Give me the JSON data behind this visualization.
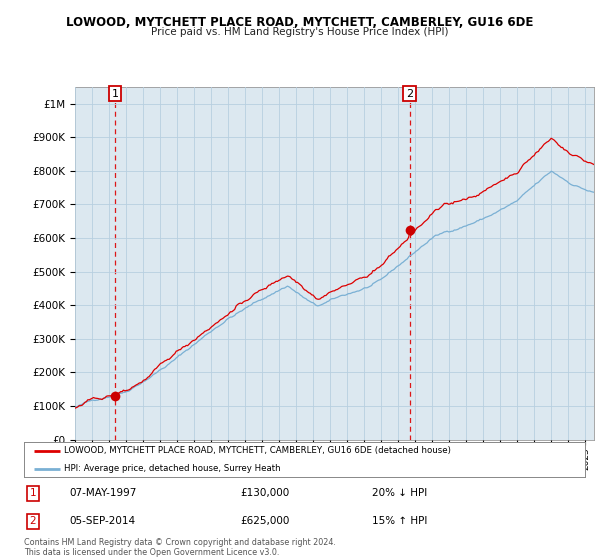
{
  "title": "LOWOOD, MYTCHETT PLACE ROAD, MYTCHETT, CAMBERLEY, GU16 6DE",
  "subtitle": "Price paid vs. HM Land Registry's House Price Index (HPI)",
  "ylabel_ticks": [
    "£0",
    "£100K",
    "£200K",
    "£300K",
    "£400K",
    "£500K",
    "£600K",
    "£700K",
    "£800K",
    "£900K",
    "£1M"
  ],
  "ytick_values": [
    0,
    100000,
    200000,
    300000,
    400000,
    500000,
    600000,
    700000,
    800000,
    900000,
    1000000
  ],
  "ylim": [
    0,
    1050000
  ],
  "xlim_start": 1995.0,
  "xlim_end": 2025.5,
  "transaction1": {
    "date_num": 1997.35,
    "price": 130000,
    "label": "1"
  },
  "transaction2": {
    "date_num": 2014.67,
    "price": 625000,
    "label": "2"
  },
  "red_line_color": "#dd0000",
  "blue_line_color": "#7ab0d4",
  "vline_color": "#dd0000",
  "marker_color": "#cc0000",
  "box_color": "#cc0000",
  "plot_bg_color": "#dce8f0",
  "legend_label_red": "LOWOOD, MYTCHETT PLACE ROAD, MYTCHETT, CAMBERLEY, GU16 6DE (detached house)",
  "legend_label_blue": "HPI: Average price, detached house, Surrey Heath",
  "table_rows": [
    {
      "num": "1",
      "date": "07-MAY-1997",
      "price": "£130,000",
      "change": "20% ↓ HPI"
    },
    {
      "num": "2",
      "date": "05-SEP-2014",
      "price": "£625,000",
      "change": "15% ↑ HPI"
    }
  ],
  "footer": "Contains HM Land Registry data © Crown copyright and database right 2024.\nThis data is licensed under the Open Government Licence v3.0.",
  "background_color": "#ffffff",
  "grid_color": "#b8cfe0"
}
